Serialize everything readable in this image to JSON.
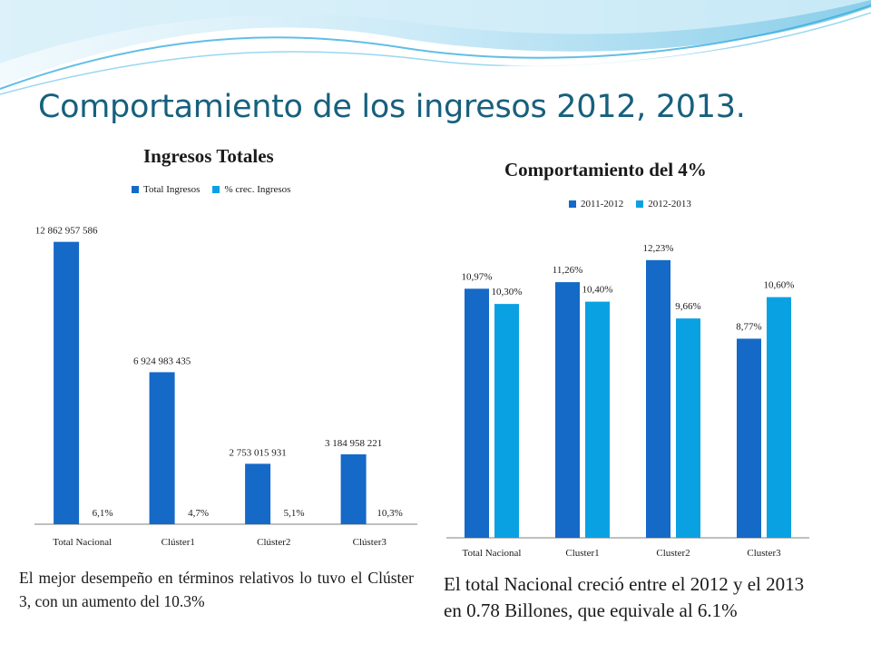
{
  "slide": {
    "title": "Comportamiento de los ingresos 2012, 2013.",
    "note_left": "El mejor desempeño en términos relativos lo tuvo el Clúster 3, con un aumento del 10.3%",
    "note_right_1": "El total Nacional creció entre el 2012 y el 2013",
    "note_right_2": "en 0.78 Billones, que equivale al 6.1%"
  },
  "colors": {
    "series_dark": "#1569c7",
    "series_light": "#0aa1e2",
    "axis": "#7f7f7f",
    "title": "#17607d"
  },
  "chart_data": [
    {
      "type": "bar",
      "title": "Ingresos Totales",
      "legend_position": "top",
      "categories": [
        "Total Nacional",
        "Clúster1",
        "Clúster2",
        "Clúster3"
      ],
      "ylim": [
        0,
        13800000000
      ],
      "grid": false,
      "series": [
        {
          "name": "Total Ingresos",
          "values": [
            12862957586,
            6924983435,
            2753015931,
            3184958221
          ],
          "labels": [
            "12 862 957 586",
            "6 924 983 435",
            "2 753 015 931",
            "3 184 958 221"
          ]
        },
        {
          "name": "% crec. Ingresos",
          "values": [
            6.1,
            4.7,
            5.1,
            10.3
          ],
          "labels": [
            "6,1%",
            "4,7%",
            "5,1%",
            "10,3%"
          ]
        }
      ]
    },
    {
      "type": "bar",
      "title": "Comportamiento del 4%",
      "legend_position": "top",
      "categories": [
        "Total Nacional",
        "Cluster1",
        "Cluster2",
        "Cluster3"
      ],
      "ylim": [
        0,
        13.7
      ],
      "grid": false,
      "series": [
        {
          "name": "2011-2012",
          "values": [
            10.97,
            11.26,
            12.23,
            8.77
          ],
          "labels": [
            "10,97%",
            "11,26%",
            "12,23%",
            "8,77%"
          ]
        },
        {
          "name": "2012-2013",
          "values": [
            10.3,
            10.4,
            9.66,
            10.6
          ],
          "labels": [
            "10,30%",
            "10,40%",
            "9,66%",
            "10,60%"
          ]
        }
      ]
    }
  ]
}
